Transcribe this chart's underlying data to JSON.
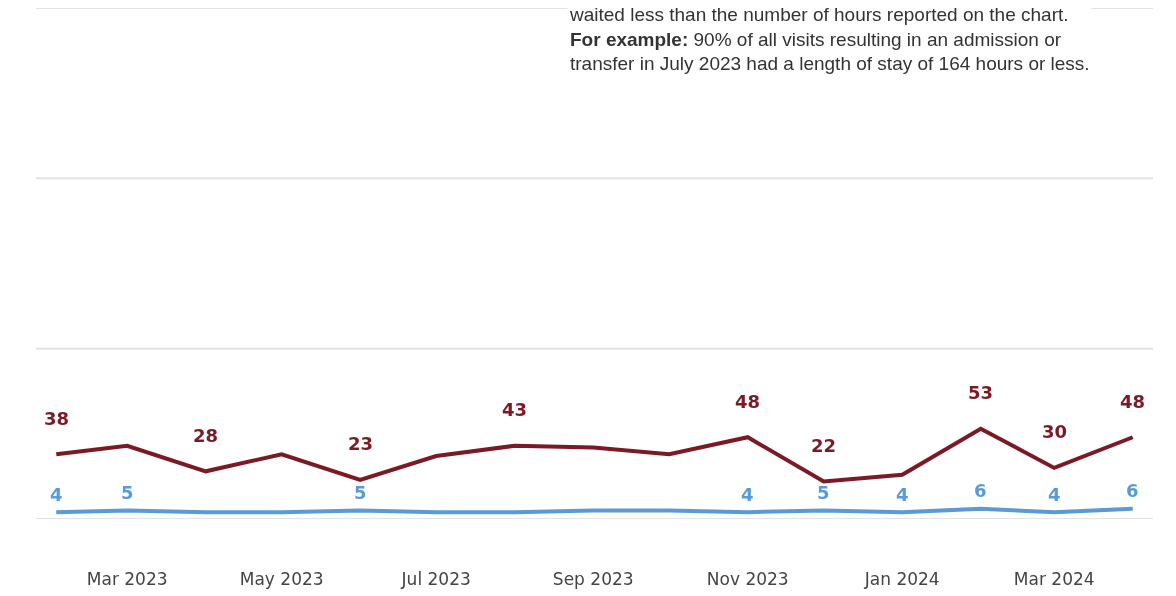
{
  "chart_data": {
    "type": "line",
    "x": [
      "2023-02",
      "2023-03",
      "2023-04",
      "2023-05",
      "2023-06",
      "2023-07",
      "2023-08",
      "2023-09",
      "2023-10",
      "2023-11",
      "2023-12",
      "2024-01",
      "2024-02",
      "2024-03",
      "2024-04"
    ],
    "series": [
      {
        "color": "#7b1a24",
        "values": [
          38,
          43,
          28,
          38,
          23,
          37,
          43,
          42,
          38,
          48,
          22,
          26,
          53,
          30,
          48
        ],
        "value_labels": [
          "38",
          null,
          "28",
          null,
          "23",
          null,
          "43",
          null,
          null,
          "48",
          "22",
          null,
          "53",
          "30",
          "48"
        ]
      },
      {
        "color": "#5b9bd5",
        "values": [
          4,
          5,
          4,
          4,
          5,
          4,
          4,
          5,
          5,
          4,
          5,
          4,
          6,
          4,
          6
        ],
        "value_labels": [
          "4",
          "5",
          null,
          null,
          "5",
          null,
          null,
          null,
          null,
          "4",
          "5",
          "4",
          "6",
          "4",
          "6"
        ]
      }
    ],
    "xlim": [
      "2023-01-24",
      "2024-04-09"
    ],
    "xticks": [
      {
        "value": "2023-03",
        "label": "Mar 2023"
      },
      {
        "value": "2023-05",
        "label": "May 2023"
      },
      {
        "value": "2023-07",
        "label": "Jul 2023"
      },
      {
        "value": "2023-09",
        "label": "Sep 2023"
      },
      {
        "value": "2023-11",
        "label": "Nov 2023"
      },
      {
        "value": "2024-01",
        "label": "Jan 2024"
      },
      {
        "value": "2024-03",
        "label": "Mar 2024"
      }
    ],
    "ylim": [
      0,
      300
    ],
    "ref_lines": [
      {
        "axis": "y",
        "value": 0,
        "color": "#e3e3e3"
      },
      {
        "axis": "y",
        "value": 100,
        "color": "#e3e3e3"
      },
      {
        "axis": "y",
        "value": 200,
        "color": "#e3e3e3"
      },
      {
        "axis": "y",
        "value": 300,
        "color": "#e3e3e3"
      }
    ],
    "tick_labels": "x",
    "marker": "none",
    "line_style": "solid",
    "annotations": [
      "waited less than the number of hours reported on the chart.",
      "For example:",
      "90% of all visits resulting in an admission or transfer in July 2023 had a length of stay of 164 hours or less."
    ]
  }
}
